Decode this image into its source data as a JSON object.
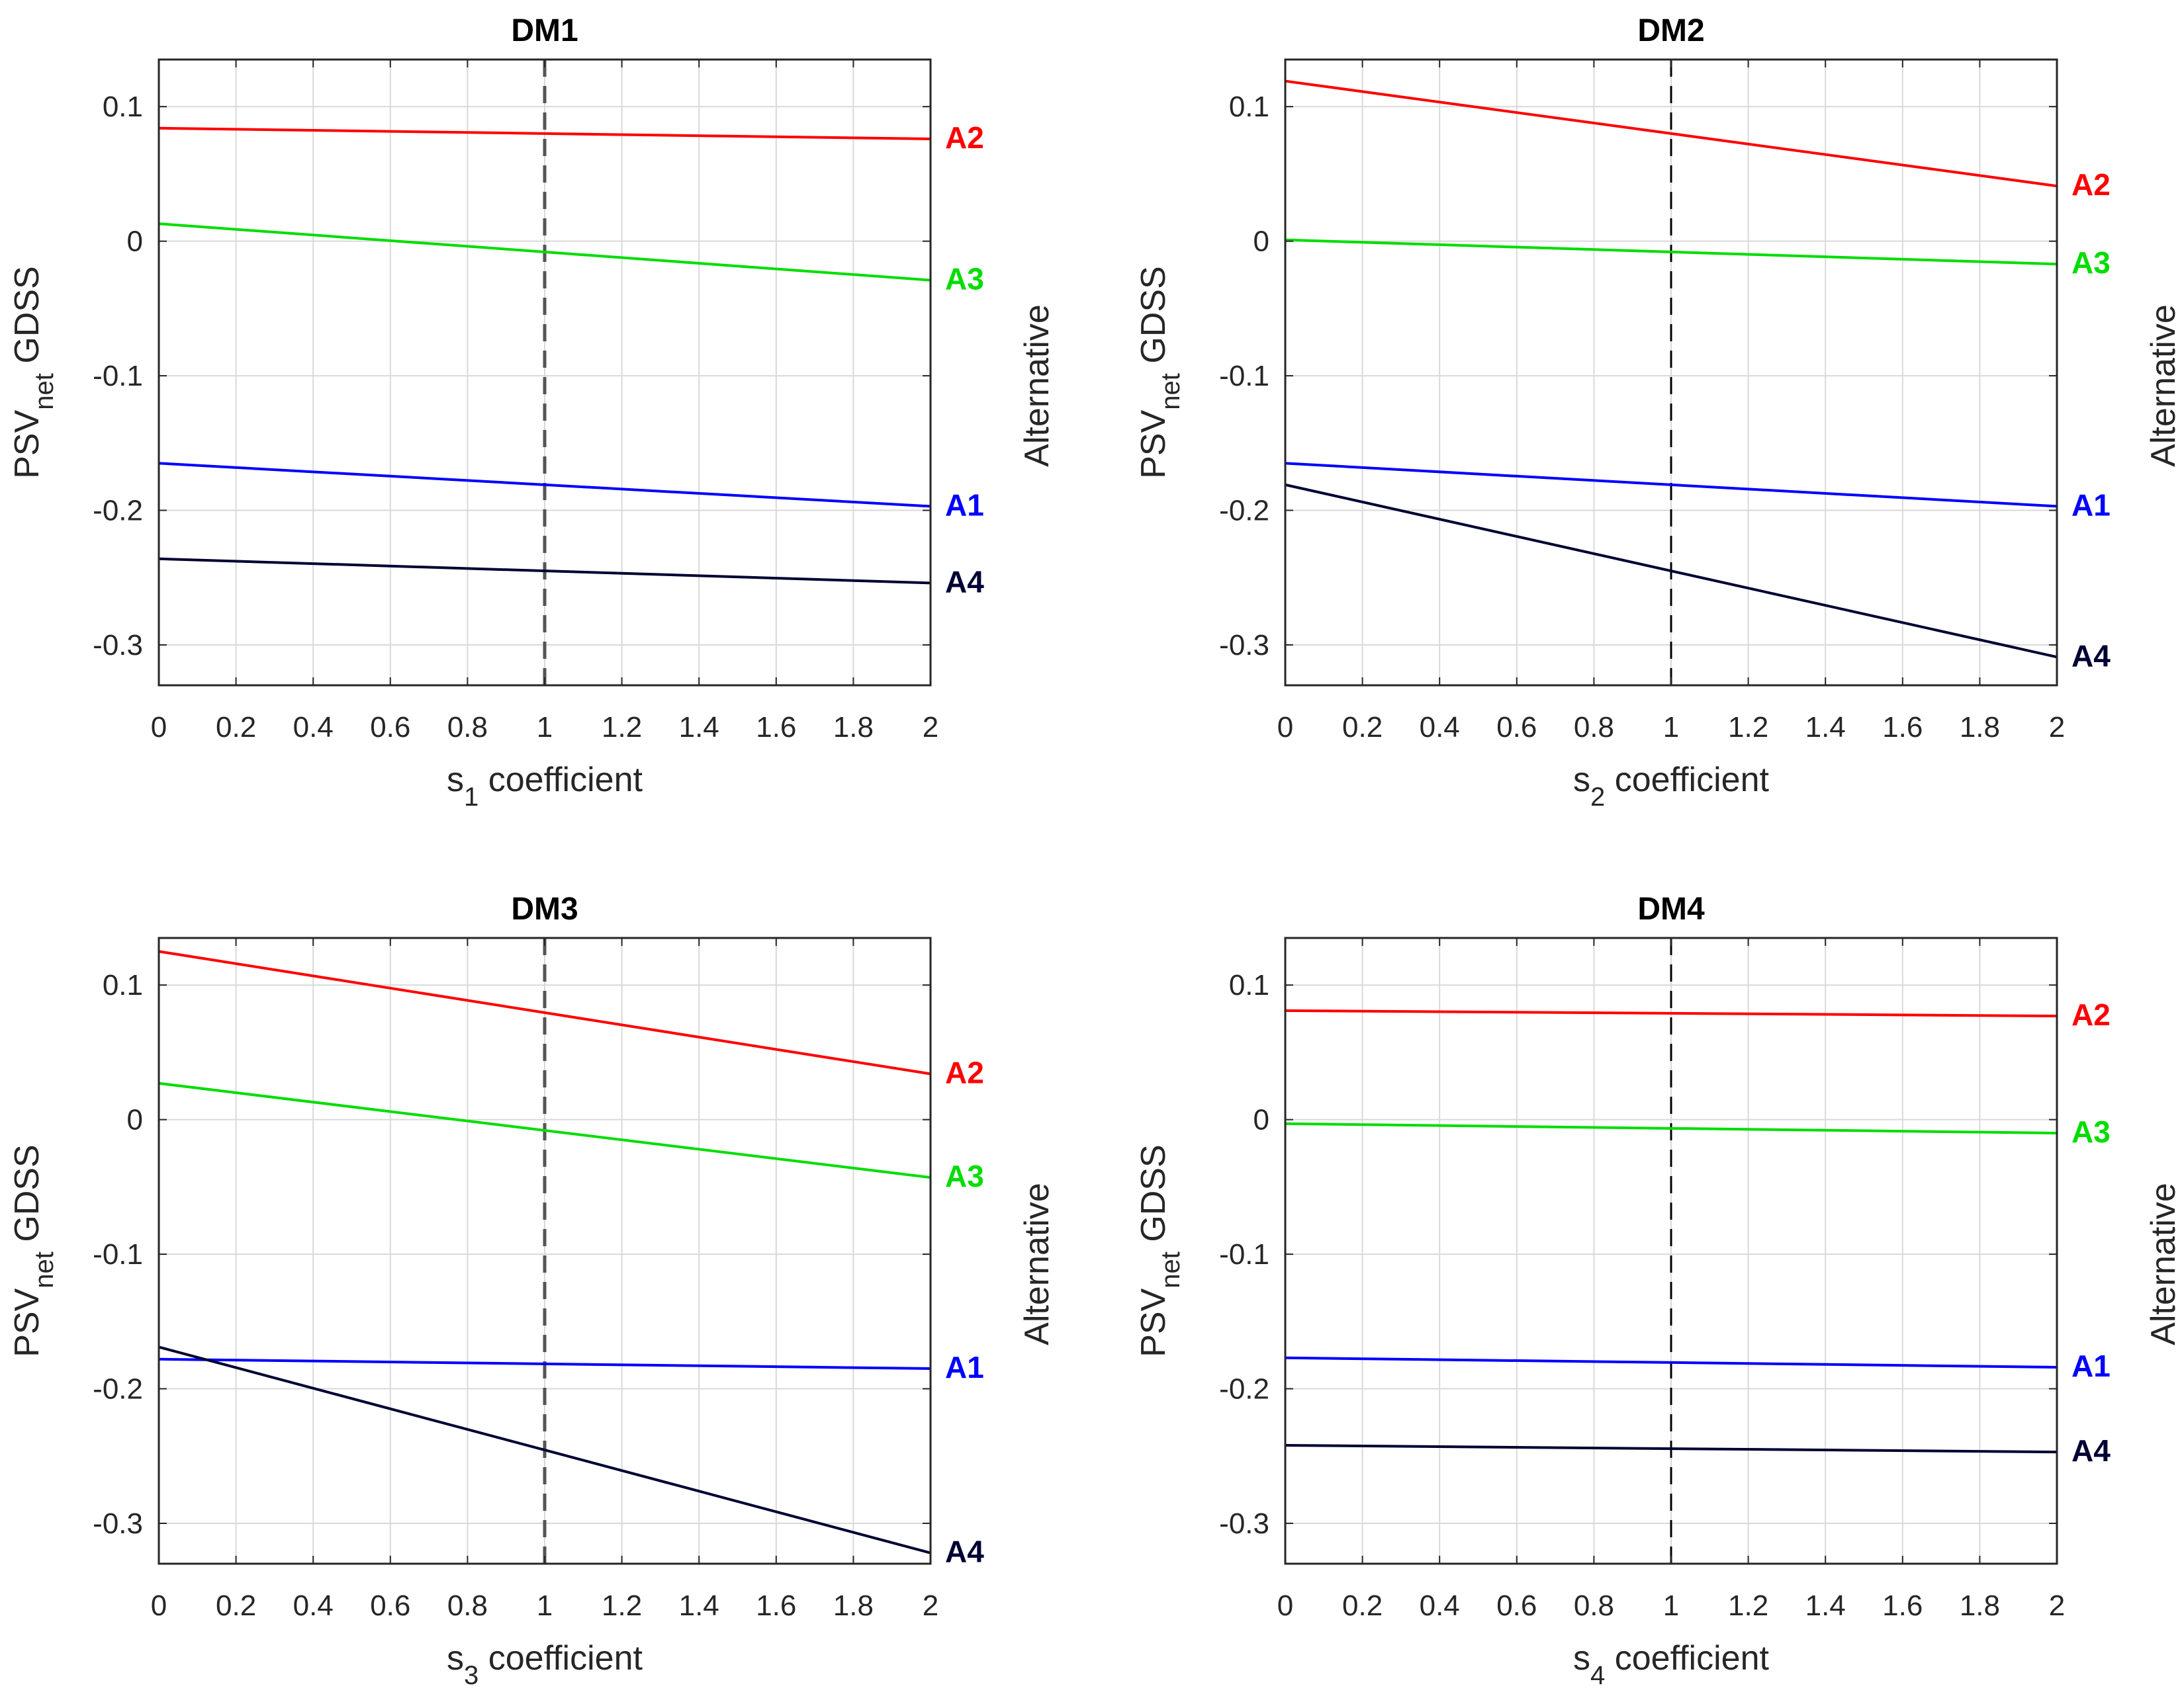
{
  "colors": {
    "A1": "#0000ff",
    "A2": "#ff0000",
    "A3": "#00dd00",
    "A4": "#000033",
    "grid": "#d9d9d9",
    "axis": "#262626",
    "marker": "#555555"
  },
  "chart_data": [
    {
      "type": "line",
      "title": "DM1",
      "xlabel": {
        "prefix": "s",
        "sub": "1",
        "suffix": " coefficient"
      },
      "ylabel": {
        "prefix": "PSV",
        "sub": "net",
        "suffix": " GDSS"
      },
      "right_label": "Alternative",
      "xlim": [
        0,
        2
      ],
      "ylim": [
        -0.33,
        0.135
      ],
      "xticks": [
        "0",
        "0.2",
        "0.4",
        "0.6",
        "0.8",
        "1",
        "1.2",
        "1.4",
        "1.6",
        "1.8",
        "2"
      ],
      "yticks": [
        "0.1",
        "0",
        "-0.1",
        "-0.2",
        "-0.3"
      ],
      "grid": true,
      "reference_line_x": 1,
      "series": [
        {
          "name": "A2",
          "x": [
            0,
            2
          ],
          "y": [
            0.084,
            0.076
          ]
        },
        {
          "name": "A3",
          "x": [
            0,
            2
          ],
          "y": [
            0.013,
            -0.029
          ]
        },
        {
          "name": "A1",
          "x": [
            0,
            2
          ],
          "y": [
            -0.165,
            -0.197
          ]
        },
        {
          "name": "A4",
          "x": [
            0,
            2
          ],
          "y": [
            -0.236,
            -0.254
          ]
        }
      ]
    },
    {
      "type": "line",
      "title": "DM2",
      "xlabel": {
        "prefix": "s",
        "sub": "2",
        "suffix": " coefficient"
      },
      "ylabel": {
        "prefix": "PSV",
        "sub": "net",
        "suffix": " GDSS"
      },
      "right_label": "Alternative",
      "xlim": [
        0,
        2
      ],
      "ylim": [
        -0.33,
        0.135
      ],
      "xticks": [
        "0",
        "0.2",
        "0.4",
        "0.6",
        "0.8",
        "1",
        "1.2",
        "1.4",
        "1.6",
        "1.8",
        "2"
      ],
      "yticks": [
        "0.1",
        "0",
        "-0.1",
        "-0.2",
        "-0.3"
      ],
      "grid": true,
      "reference_line_x": 1,
      "series": [
        {
          "name": "A2",
          "x": [
            0,
            2
          ],
          "y": [
            0.119,
            0.041
          ]
        },
        {
          "name": "A3",
          "x": [
            0,
            2
          ],
          "y": [
            0.001,
            -0.017
          ]
        },
        {
          "name": "A1",
          "x": [
            0,
            2
          ],
          "y": [
            -0.165,
            -0.197
          ]
        },
        {
          "name": "A4",
          "x": [
            0,
            2
          ],
          "y": [
            -0.181,
            -0.309
          ]
        }
      ]
    },
    {
      "type": "line",
      "title": "DM3",
      "xlabel": {
        "prefix": "s",
        "sub": "3",
        "suffix": " coefficient"
      },
      "ylabel": {
        "prefix": "PSV",
        "sub": "net",
        "suffix": " GDSS"
      },
      "right_label": "Alternative",
      "xlim": [
        0,
        2
      ],
      "ylim": [
        -0.33,
        0.135
      ],
      "xticks": [
        "0",
        "0.2",
        "0.4",
        "0.6",
        "0.8",
        "1",
        "1.2",
        "1.4",
        "1.6",
        "1.8",
        "2"
      ],
      "yticks": [
        "0.1",
        "0",
        "-0.1",
        "-0.2",
        "-0.3"
      ],
      "grid": true,
      "reference_line_x": 1,
      "series": [
        {
          "name": "A2",
          "x": [
            0,
            2
          ],
          "y": [
            0.125,
            0.034
          ]
        },
        {
          "name": "A3",
          "x": [
            0,
            2
          ],
          "y": [
            0.027,
            -0.043
          ]
        },
        {
          "name": "A1",
          "x": [
            0,
            2
          ],
          "y": [
            -0.178,
            -0.185
          ]
        },
        {
          "name": "A4",
          "x": [
            0,
            2
          ],
          "y": [
            -0.169,
            -0.322
          ]
        }
      ]
    },
    {
      "type": "line",
      "title": "DM4",
      "xlabel": {
        "prefix": "s",
        "sub": "4",
        "suffix": " coefficient"
      },
      "ylabel": {
        "prefix": "PSV",
        "sub": "net",
        "suffix": " GDSS"
      },
      "right_label": "Alternative",
      "xlim": [
        0,
        2
      ],
      "ylim": [
        -0.33,
        0.135
      ],
      "xticks": [
        "0",
        "0.2",
        "0.4",
        "0.6",
        "0.8",
        "1",
        "1.2",
        "1.4",
        "1.6",
        "1.8",
        "2"
      ],
      "yticks": [
        "0.1",
        "0",
        "-0.1",
        "-0.2",
        "-0.3"
      ],
      "grid": true,
      "reference_line_x": 1,
      "series": [
        {
          "name": "A2",
          "x": [
            0,
            2
          ],
          "y": [
            0.081,
            0.077
          ]
        },
        {
          "name": "A3",
          "x": [
            0,
            2
          ],
          "y": [
            -0.003,
            -0.01
          ]
        },
        {
          "name": "A1",
          "x": [
            0,
            2
          ],
          "y": [
            -0.177,
            -0.184
          ]
        },
        {
          "name": "A4",
          "x": [
            0,
            2
          ],
          "y": [
            -0.242,
            -0.247
          ]
        }
      ]
    }
  ]
}
